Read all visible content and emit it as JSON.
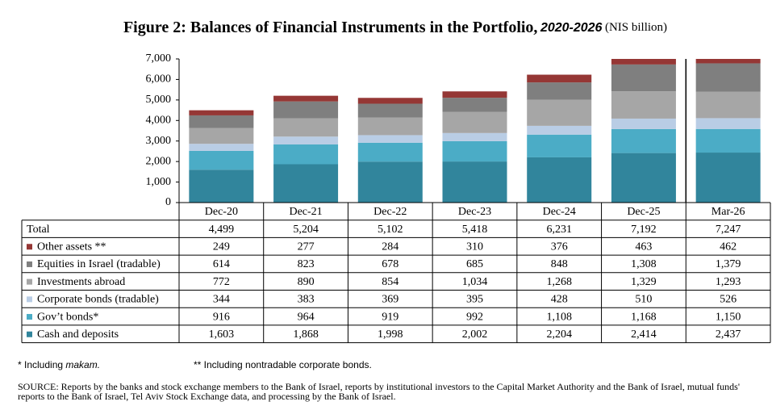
{
  "chart_data": {
    "type": "stacked_bar",
    "title": "Figure 2: Balances of Financial Instruments in the Portfolio,",
    "title_period": "2020-2026",
    "title_unit": "(NIS billion)",
    "categories": [
      "Dec-20",
      "Dec-21",
      "Dec-22",
      "Dec-23",
      "Dec-24",
      "Dec-25",
      "Mar-26"
    ],
    "ylim": [
      0,
      7000
    ],
    "yticks": [
      0,
      {
        "value": 1000,
        "label": "1,000"
      },
      {
        "value": 2000,
        "label": "2,000"
      },
      {
        "value": 3000,
        "label": "3,000"
      },
      {
        "value": 4000,
        "label": "4,000"
      },
      {
        "value": 5000,
        "label": "5,000"
      },
      {
        "value": 6000,
        "label": "6,000"
      },
      {
        "value": 7000,
        "label": "7,000"
      }
    ],
    "totals": {
      "name": "Total",
      "values": [
        4499,
        5204,
        5102,
        5418,
        6231,
        7192,
        7247
      ],
      "value_labels": [
        "4,499",
        "5,204",
        "5,102",
        "5,418",
        "6,231",
        "7,192",
        "7,247"
      ]
    },
    "series": [
      {
        "name": "Cash and deposits",
        "color": "#31859c",
        "values": [
          1603,
          1868,
          1998,
          2002,
          2204,
          2414,
          2437
        ],
        "value_labels": [
          "1,603",
          "1,868",
          "1,998",
          "2,002",
          "2,204",
          "2,414",
          "2,437"
        ]
      },
      {
        "name": "Gov’t bonds*",
        "color": "#4bacc6",
        "values": [
          916,
          964,
          919,
          992,
          1108,
          1168,
          1150
        ],
        "value_labels": [
          "916",
          "964",
          "919",
          "992",
          "1,108",
          "1,168",
          "1,150"
        ]
      },
      {
        "name": "Corporate bonds (tradable)",
        "color": "#b9cde5",
        "values": [
          344,
          383,
          369,
          395,
          428,
          510,
          526
        ],
        "value_labels": [
          "344",
          "383",
          "369",
          "395",
          "428",
          "510",
          "526"
        ]
      },
      {
        "name": "Investments abroad",
        "color": "#a6a6a6",
        "values": [
          772,
          890,
          854,
          1034,
          1268,
          1329,
          1293
        ],
        "value_labels": [
          "772",
          "890",
          "854",
          "1,034",
          "1,268",
          "1,329",
          "1,293"
        ]
      },
      {
        "name": "Equities in Israel (tradable)",
        "color": "#7f7f7f",
        "values": [
          614,
          823,
          678,
          685,
          848,
          1308,
          1379
        ],
        "value_labels": [
          "614",
          "823",
          "678",
          "685",
          "848",
          "1,308",
          "1,379"
        ]
      },
      {
        "name": "Other assets **",
        "color": "#953735",
        "values": [
          249,
          277,
          284,
          310,
          376,
          463,
          462
        ],
        "value_labels": [
          "249",
          "277",
          "284",
          "310",
          "376",
          "463",
          "462"
        ]
      }
    ],
    "footnote_1": "* Including",
    "footnote_1_term": "makam.",
    "footnote_2": "** Including nontradable corporate bonds.",
    "source": "SOURCE: Reports by the banks and stock exchange members to the Bank of Israel, reports by institutional investors to the Capital Market Authority and the Bank of Israel, mutual funds' reports to the Bank of Israel, Tel Aviv Stock Exchange data, and processing by the Bank of Israel."
  }
}
